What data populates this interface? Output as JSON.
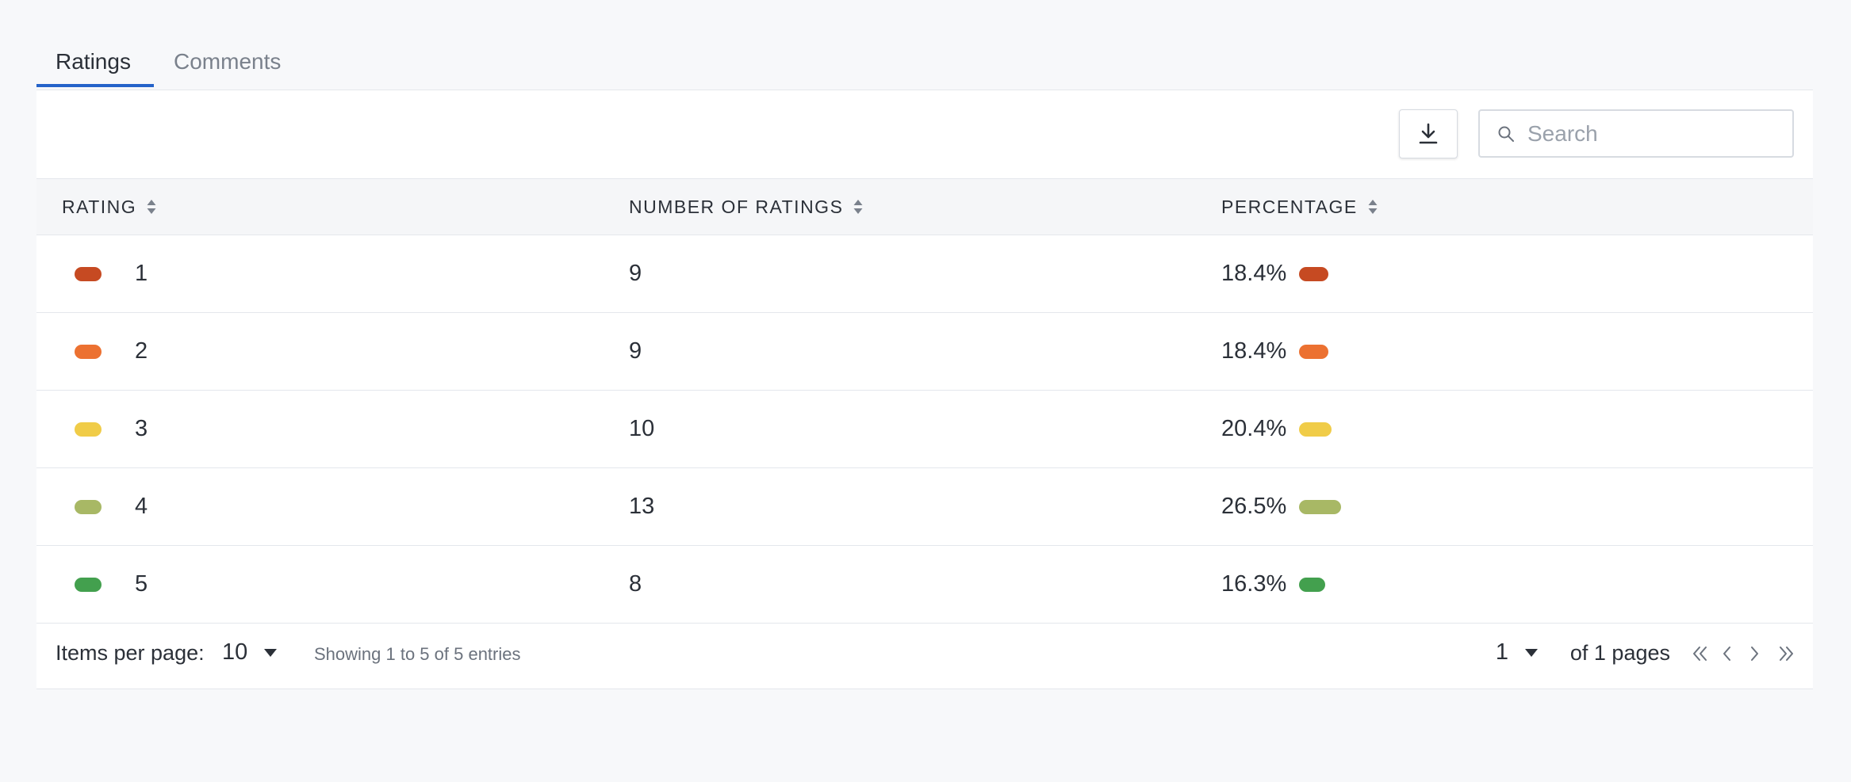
{
  "tabs": [
    {
      "label": "Ratings",
      "active": true
    },
    {
      "label": "Comments",
      "active": false
    }
  ],
  "toolbar": {
    "download_icon": "download-icon",
    "search_placeholder": "Search",
    "search_value": ""
  },
  "table": {
    "columns": [
      "RATING",
      "NUMBER OF RATINGS",
      "PERCENTAGE"
    ],
    "rows": [
      {
        "rating": "1",
        "count": "9",
        "percentage": "18.4%",
        "fraction": 0.184,
        "color": "#c64a22"
      },
      {
        "rating": "2",
        "count": "9",
        "percentage": "18.4%",
        "fraction": 0.184,
        "color": "#ec7131"
      },
      {
        "rating": "3",
        "count": "10",
        "percentage": "20.4%",
        "fraction": 0.204,
        "color": "#f0cc48"
      },
      {
        "rating": "4",
        "count": "13",
        "percentage": "26.5%",
        "fraction": 0.265,
        "color": "#a8b865"
      },
      {
        "rating": "5",
        "count": "8",
        "percentage": "16.3%",
        "fraction": 0.163,
        "color": "#43a04e"
      }
    ]
  },
  "footer": {
    "items_per_page_label": "Items per page:",
    "items_per_page_value": "10",
    "showing_text": "Showing 1 to 5 of 5 entries",
    "current_page": "1",
    "of_pages_text": "of 1 pages"
  },
  "colors": {
    "accent": "#2563c9",
    "background": "#f7f8fa"
  }
}
